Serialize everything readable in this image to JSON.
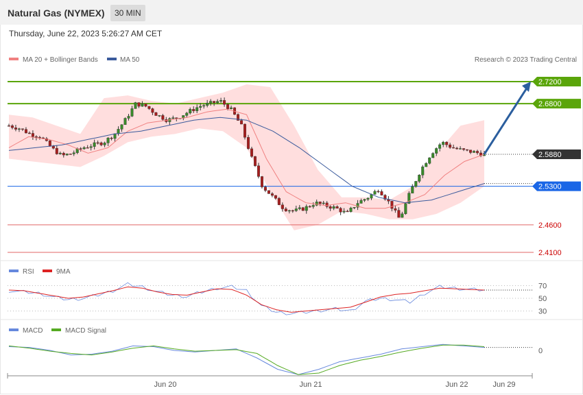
{
  "header": {
    "title": "Natural Gas (NYMEX)",
    "timeframe": "30 MIN",
    "datetime": "Thursday, June 22, 2023 5:26:27 AM CET"
  },
  "legend": {
    "ma20": "MA 20 + Bollinger Bands",
    "ma50": "MA 50",
    "credit": "Research © 2023 Trading Central",
    "rsi": "RSI",
    "rsi_ma": "9MA",
    "macd": "MACD",
    "macd_signal": "MACD Signal"
  },
  "colors": {
    "resistance": "#5aa50a",
    "current": "#333333",
    "pivot": "#1a66e6",
    "support": "#e06666",
    "arrow": "#2b5e9e",
    "bollinger": "#ffdede",
    "ma20": "#f08080",
    "ma50": "#3a5a9c",
    "rsi": "#6688dd",
    "rsi_ma": "#dd2222",
    "macd": "#6688dd",
    "macd_signal": "#55aa22"
  },
  "chart_data": {
    "type": "candlestick",
    "instrument": "Natural Gas (NYMEX)",
    "interval": "30 MIN",
    "price_levels": [
      {
        "value": 2.72,
        "label": "2.7200",
        "role": "resistance"
      },
      {
        "value": 2.68,
        "label": "2.6800",
        "role": "resistance"
      },
      {
        "value": 2.588,
        "label": "2.5880",
        "role": "current"
      },
      {
        "value": 2.53,
        "label": "2.5300",
        "role": "pivot"
      },
      {
        "value": 2.46,
        "label": "2.4600",
        "role": "support"
      },
      {
        "value": 2.41,
        "label": "2.4100",
        "role": "support"
      }
    ],
    "x_ticks": [
      "Jun 20",
      "Jun 21",
      "Jun 22",
      "Jun 29"
    ],
    "rsi_levels": [
      70,
      50,
      30
    ],
    "macd_levels": [
      0
    ],
    "projection": {
      "from": 2.588,
      "to": 2.72
    },
    "close_path": [
      2.64,
      2.635,
      2.625,
      2.62,
      2.6,
      2.585,
      2.59,
      2.6,
      2.605,
      2.61,
      2.625,
      2.65,
      2.68,
      2.675,
      2.66,
      2.65,
      2.655,
      2.665,
      2.675,
      2.68,
      2.685,
      2.67,
      2.64,
      2.58,
      2.53,
      2.51,
      2.49,
      2.485,
      2.49,
      2.5,
      2.495,
      2.49,
      2.48,
      2.5,
      2.51,
      2.525,
      2.5,
      2.47,
      2.52,
      2.56,
      2.59,
      2.61,
      2.6,
      2.595,
      2.592,
      2.588
    ],
    "ma20_path": [
      2.6,
      2.62,
      2.615,
      2.605,
      2.59,
      2.6,
      2.63,
      2.645,
      2.65,
      2.655,
      2.665,
      2.67,
      2.66,
      2.58,
      2.52,
      2.5,
      2.495,
      2.5,
      2.49,
      2.49,
      2.5,
      2.515,
      2.55,
      2.575,
      2.588
    ],
    "ma50_path": [
      2.595,
      2.6,
      2.605,
      2.615,
      2.625,
      2.63,
      2.64,
      2.65,
      2.655,
      2.65,
      2.63,
      2.6,
      2.565,
      2.53,
      2.51,
      2.5,
      2.505,
      2.52,
      2.535
    ],
    "bb_upper": [
      2.66,
      2.655,
      2.64,
      2.625,
      2.69,
      2.695,
      2.685,
      2.68,
      2.69,
      2.7,
      2.715,
      2.71,
      2.64,
      2.56,
      2.51,
      2.51,
      2.505,
      2.53,
      2.59,
      2.64,
      2.65
    ],
    "bb_lower": [
      2.58,
      2.575,
      2.57,
      2.565,
      2.585,
      2.61,
      2.62,
      2.625,
      2.635,
      2.63,
      2.6,
      2.52,
      2.45,
      2.46,
      2.485,
      2.48,
      2.47,
      2.47,
      2.48,
      2.5,
      2.53
    ],
    "rsi_values": [
      62,
      60,
      58,
      52,
      48,
      50,
      55,
      62,
      72,
      68,
      60,
      55,
      53,
      60,
      66,
      68,
      62,
      38,
      28,
      26,
      28,
      31,
      33,
      30,
      45,
      50,
      48,
      44,
      58,
      68,
      66,
      64,
      63
    ],
    "rsi_ma_values": [
      63,
      62,
      58,
      54,
      50,
      52,
      57,
      62,
      68,
      66,
      60,
      56,
      55,
      60,
      65,
      64,
      55,
      40,
      32,
      28,
      30,
      32,
      34,
      36,
      44,
      52,
      56,
      58,
      62,
      66,
      65,
      64,
      63
    ],
    "macd_values": [
      0.005,
      0.004,
      0.0,
      -0.006,
      -0.005,
      -0.001,
      0.006,
      0.005,
      0.0,
      -0.002,
      0.0,
      0.002,
      -0.01,
      -0.025,
      -0.032,
      -0.025,
      -0.015,
      -0.01,
      -0.005,
      0.002,
      0.005,
      0.008,
      0.006,
      0.004
    ],
    "macd_signal_values": [
      0.006,
      0.003,
      -0.001,
      -0.004,
      -0.006,
      -0.002,
      0.003,
      0.006,
      0.002,
      -0.001,
      0.0,
      0.001,
      -0.004,
      -0.02,
      -0.032,
      -0.03,
      -0.02,
      -0.013,
      -0.008,
      -0.002,
      0.003,
      0.007,
      0.007,
      0.005
    ]
  }
}
